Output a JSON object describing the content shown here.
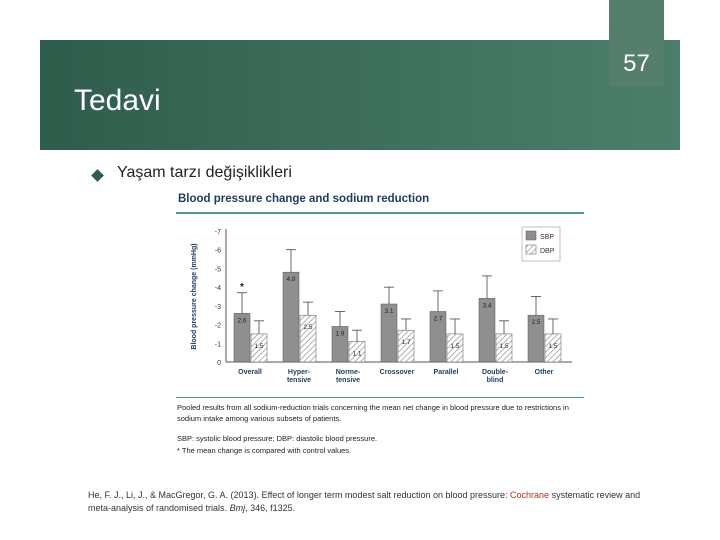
{
  "slide": {
    "page_number": "57",
    "title": "Tedavi",
    "bullet": "Yaşam tarzı değişiklikleri"
  },
  "figure": {
    "caption": "Pooled results from all sodium-reduction trials concerning the mean net change in blood pressure due to restrictions in sodium intake among various subsets of patients.",
    "note_abbrev": "SBP: systolic blood pressure; DBP: diastolic blood pressure.",
    "note_star": "* The mean change is compared with control values."
  },
  "reference": {
    "part1": "He, F. J., Li, J., & MacGregor, G. A. (2013). Effect of longer term modest salt reduction on blood pressure: ",
    "part2": "Cochrane",
    "part3": "systematic review and meta-analysis of randomised trials. ",
    "part4": "Bmj",
    "part5": ", 346, f1325."
  },
  "colors": {
    "header": "#2f5d4c",
    "sbp": "#8f8f8f",
    "dbp_hatch": "#9a9a9a",
    "title_blue": "#1f3a5f",
    "rule": "#4a9a8a"
  },
  "chart_data": {
    "type": "bar",
    "title": "Blood pressure change and sodium reduction",
    "ylabel": "Blood pressure change (mmHg)",
    "ylim": [
      0,
      -7
    ],
    "yticks": [
      "-7",
      "-6",
      "-5",
      "-4",
      "-3",
      "-2",
      "-1",
      "0"
    ],
    "categories": [
      "Overall",
      "Hyper-tensive",
      "Norme-tensive",
      "Crossover",
      "Parallel",
      "Double-blind",
      "Other"
    ],
    "series": [
      {
        "name": "SBP",
        "values": [
          -2.6,
          -4.8,
          -1.9,
          -3.1,
          -2.7,
          -3.4,
          -2.5
        ],
        "err_high": [
          -3.7,
          -6.0,
          -2.7,
          -4.0,
          -3.8,
          -4.6,
          -3.5
        ]
      },
      {
        "name": "DBP",
        "values": [
          -1.5,
          -2.5,
          -1.1,
          -1.7,
          -1.5,
          -1.5,
          -1.5
        ],
        "err_high": [
          -2.2,
          -3.2,
          -1.7,
          -2.3,
          -2.3,
          -2.2,
          -2.3
        ]
      }
    ],
    "data_labels": {
      "SBP": [
        "2.6",
        "4.8",
        "1.9",
        "3.1",
        "2.7",
        "3.4",
        "2.5"
      ],
      "DBP": [
        "1.5",
        "2.5",
        "1.1",
        "1.7",
        "1.5",
        "1.5",
        "1.5"
      ]
    },
    "annotations": [
      {
        "category": "Overall",
        "text": "*"
      }
    ],
    "legend": "top-right"
  }
}
